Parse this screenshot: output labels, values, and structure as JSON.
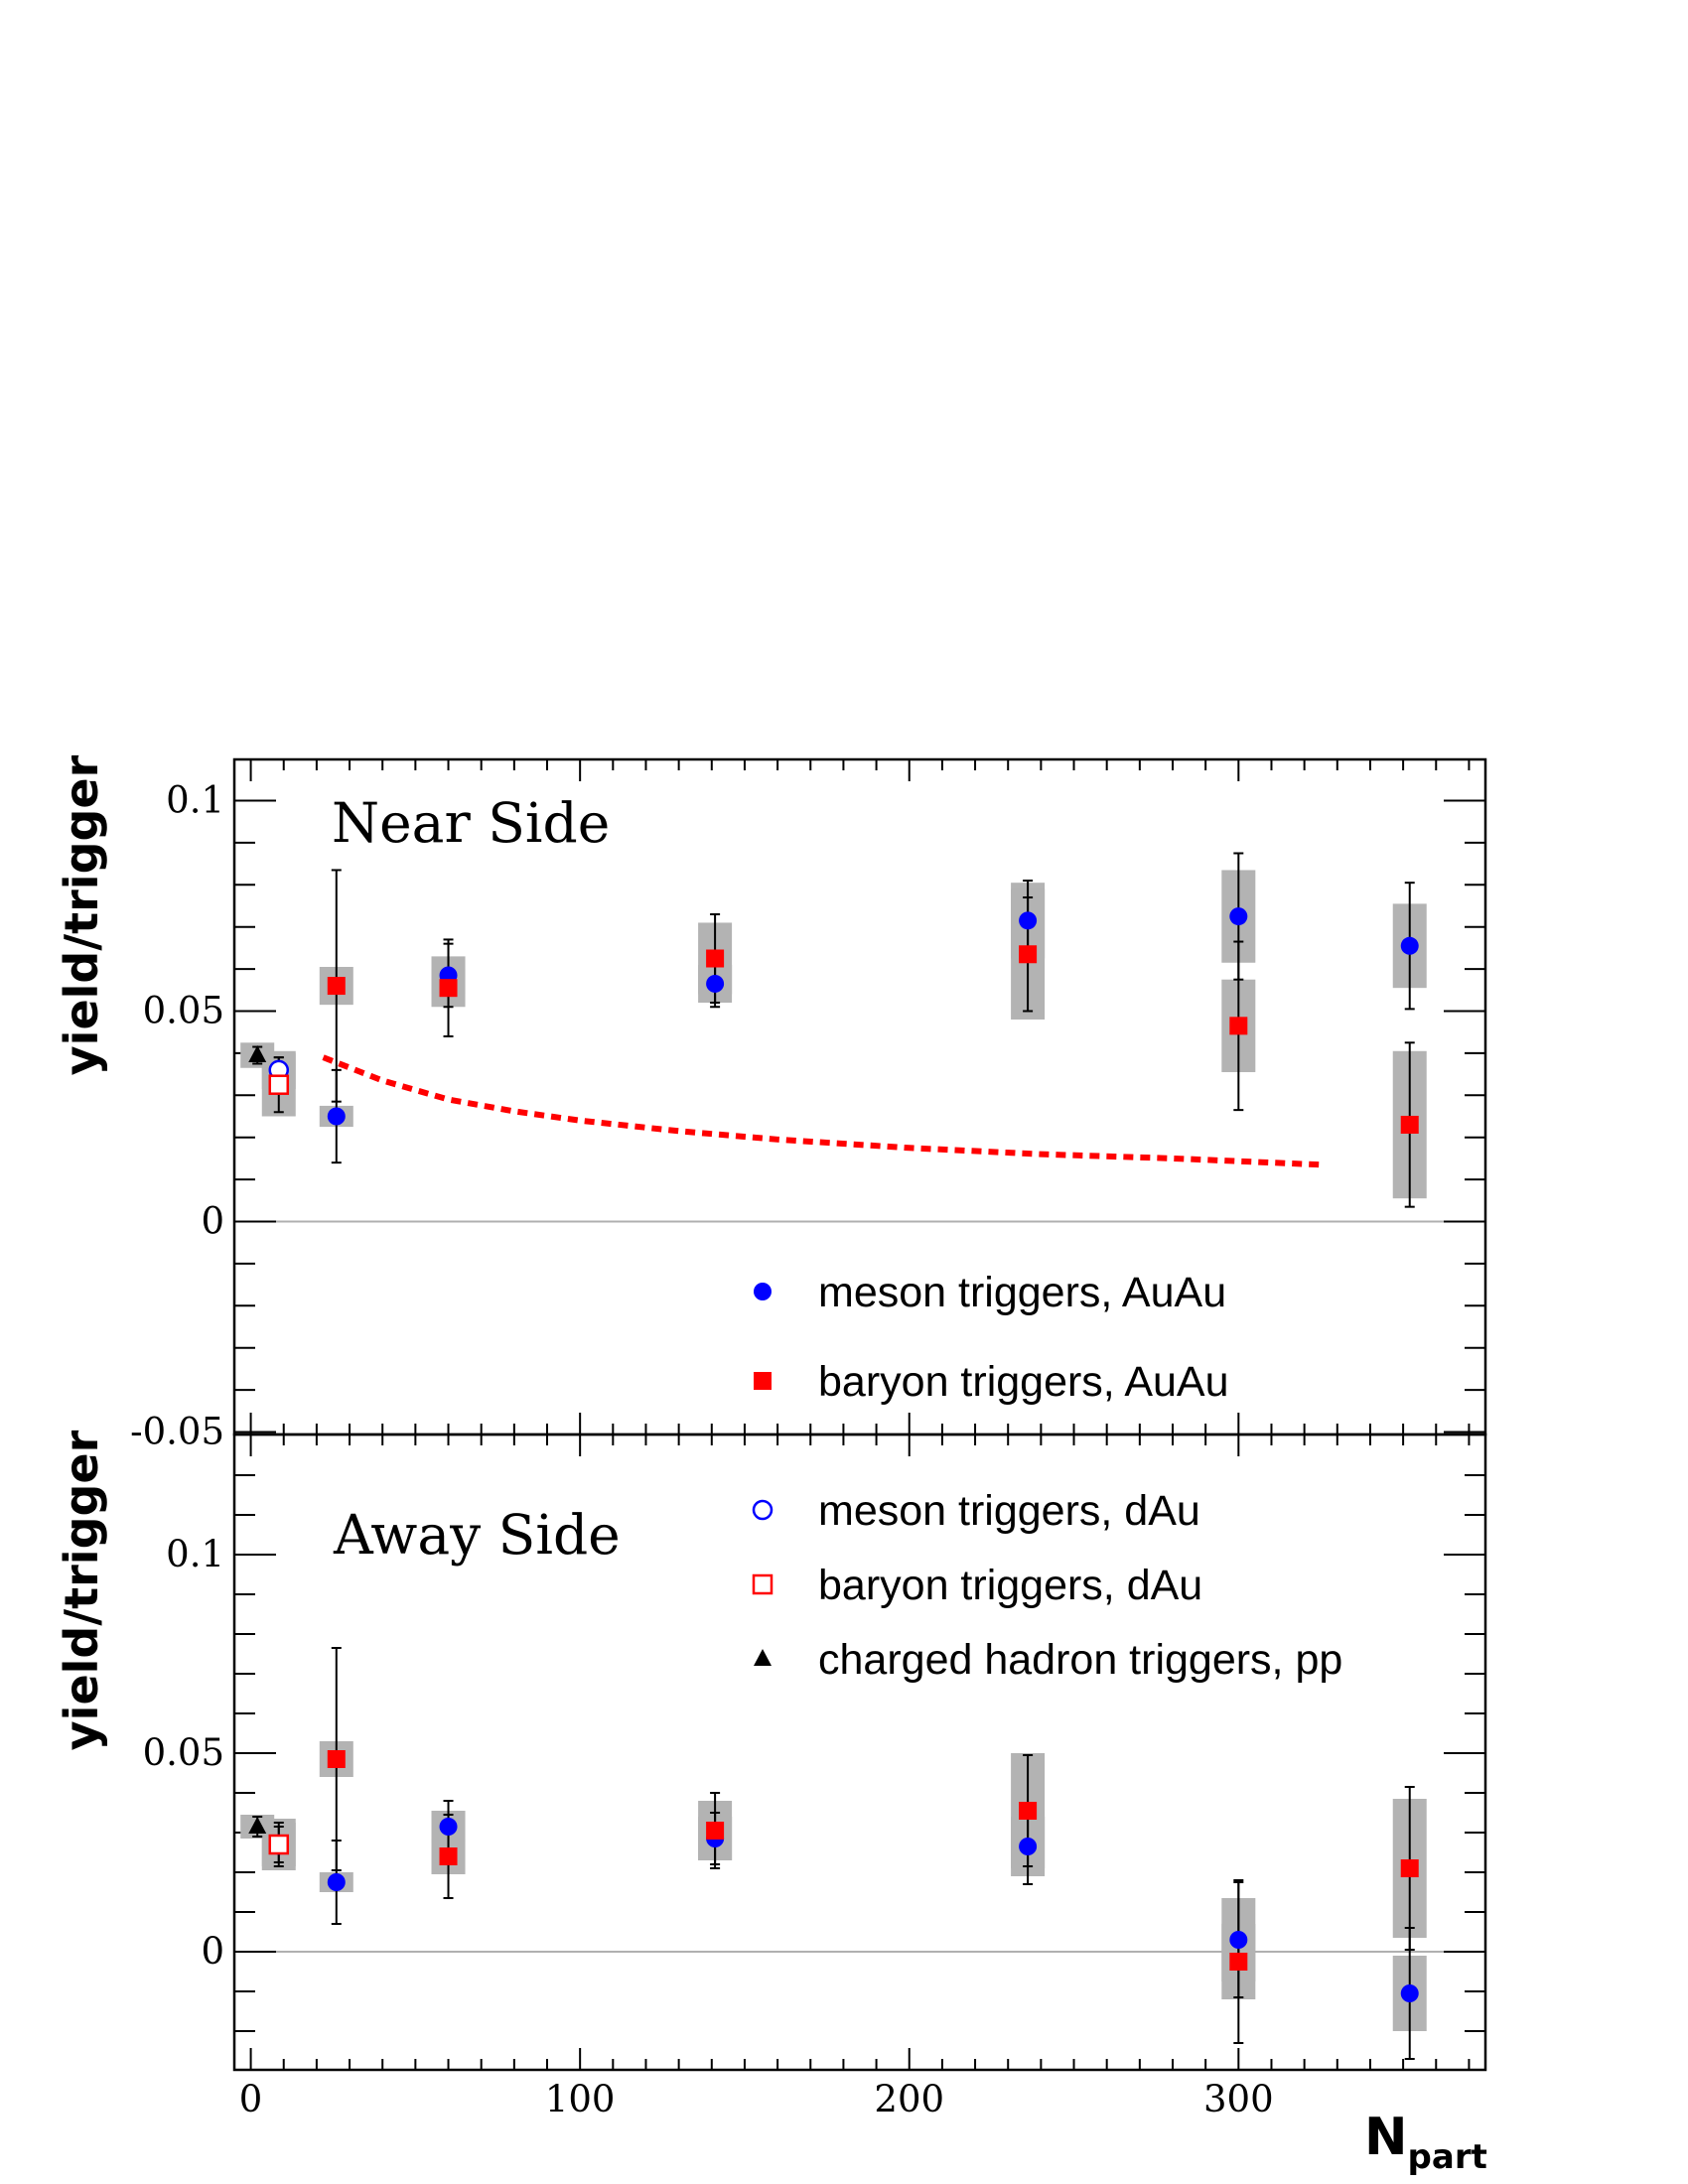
{
  "chart_data": [
    {
      "type": "scatter",
      "title": "Near Side",
      "ylabel": "yield/trigger",
      "ylim": [
        -0.05,
        0.1
      ],
      "yticks": [
        -0.05,
        0,
        0.05,
        0.1
      ],
      "ytick_labels": [
        "-0.05",
        "0",
        "0.05",
        "0.1"
      ],
      "series": [
        {
          "name": "meson triggers, AuAu",
          "marker": "circle",
          "color": "#0000ff",
          "filled": true,
          "points": [
            {
              "x": 26,
              "y": 0.025,
              "err": 0.011,
              "sys": 0.0025
            },
            {
              "x": 60,
              "y": 0.0585,
              "err": 0.0075,
              "sys": 0.0045
            },
            {
              "x": 141,
              "y": 0.0565,
              "err": 0.0055,
              "sys": 0.0045
            },
            {
              "x": 236,
              "y": 0.0715,
              "err": 0.0095,
              "sys": 0.009
            },
            {
              "x": 300,
              "y": 0.0725,
              "err": 0.015,
              "sys": 0.011
            },
            {
              "x": 352,
              "y": 0.0655,
              "err": 0.015,
              "sys": 0.01
            }
          ]
        },
        {
          "name": "baryon triggers, AuAu",
          "marker": "square",
          "color": "#ff0000",
          "filled": true,
          "points": [
            {
              "x": 26,
              "y": 0.056,
              "err": 0.0275,
              "sys": 0.0045
            },
            {
              "x": 60,
              "y": 0.0555,
              "err": 0.0115,
              "sys": 0.0045
            },
            {
              "x": 141,
              "y": 0.0625,
              "err": 0.0105,
              "sys": 0.0085
            },
            {
              "x": 236,
              "y": 0.0635,
              "err": 0.0135,
              "sys": 0.0155
            },
            {
              "x": 300,
              "y": 0.0465,
              "err": 0.02,
              "sys": 0.011
            },
            {
              "x": 352,
              "y": 0.023,
              "err": 0.0195,
              "sys": 0.0175
            }
          ]
        },
        {
          "name": "meson triggers, dAu",
          "marker": "circle",
          "color": "#0000ff",
          "filled": false,
          "points": [
            {
              "x": 8.5,
              "y": 0.036,
              "err": 0.003,
              "sys": 0.0045
            }
          ]
        },
        {
          "name": "baryon triggers, dAu",
          "marker": "square",
          "color": "#ff0000",
          "filled": false,
          "points": [
            {
              "x": 8.5,
              "y": 0.0325,
              "err": 0.0065,
              "sys": 0.0075
            }
          ]
        },
        {
          "name": "charged hadron triggers, pp",
          "marker": "triangle",
          "color": "#000000",
          "filled": true,
          "points": [
            {
              "x": 2,
              "y": 0.0395,
              "err": 0.002,
              "sys": 0.003
            }
          ]
        }
      ],
      "curve": {
        "style": "dashed",
        "color": "#ff0000",
        "x": [
          22,
          40,
          60,
          80,
          100,
          130,
          160,
          200,
          240,
          280,
          325
        ],
        "y": [
          0.039,
          0.0335,
          0.029,
          0.0262,
          0.024,
          0.0215,
          0.0195,
          0.0175,
          0.016,
          0.015,
          0.0135
        ]
      }
    },
    {
      "type": "scatter",
      "title": "Away Side",
      "xlabel": "N",
      "xlabel_sub": "part",
      "ylabel": "yield/trigger",
      "xlim": [
        -5,
        375
      ],
      "ylim": [
        -0.028,
        0.128
      ],
      "xticks": [
        0,
        100,
        200,
        300
      ],
      "xtick_labels": [
        "0",
        "100",
        "200",
        "300"
      ],
      "yticks": [
        0,
        0.05,
        0.1
      ],
      "ytick_labels": [
        "0",
        "0.05",
        "0.1"
      ],
      "series": [
        {
          "name": "meson triggers, AuAu",
          "marker": "circle",
          "color": "#0000ff",
          "filled": true,
          "points": [
            {
              "x": 26,
              "y": 0.0175,
              "err": 0.0105,
              "sys": 0.0025
            },
            {
              "x": 60,
              "y": 0.0315,
              "err": 0.0065,
              "sys": 0.004
            },
            {
              "x": 141,
              "y": 0.0285,
              "err": 0.0065,
              "sys": 0.0055
            },
            {
              "x": 236,
              "y": 0.0265,
              "err": 0.0095,
              "sys": 0.0075
            },
            {
              "x": 300,
              "y": 0.003,
              "err": 0.0145,
              "sys": 0.0105
            },
            {
              "x": 352,
              "y": -0.0105,
              "err": 0.0165,
              "sys": 0.0095
            }
          ]
        },
        {
          "name": "baryon triggers, AuAu",
          "marker": "square",
          "color": "#ff0000",
          "filled": true,
          "points": [
            {
              "x": 26,
              "y": 0.0485,
              "err": 0.028,
              "sys": 0.0045
            },
            {
              "x": 60,
              "y": 0.024,
              "err": 0.0105,
              "sys": 0.0045
            },
            {
              "x": 141,
              "y": 0.0305,
              "err": 0.0095,
              "sys": 0.0075
            },
            {
              "x": 236,
              "y": 0.0355,
              "err": 0.014,
              "sys": 0.0145
            },
            {
              "x": 300,
              "y": -0.0025,
              "err": 0.0205,
              "sys": 0.0095
            },
            {
              "x": 352,
              "y": 0.021,
              "err": 0.0205,
              "sys": 0.0175
            }
          ]
        },
        {
          "name": "meson triggers, dAu",
          "marker": "circle",
          "color": "#0000ff",
          "filled": false,
          "points": [
            {
              "x": 8.5,
              "y": 0.027,
              "err": 0.0045,
              "sys": 0.0055
            }
          ]
        },
        {
          "name": "baryon triggers, dAu",
          "marker": "square",
          "color": "#ff0000",
          "filled": false,
          "points": [
            {
              "x": 8.5,
              "y": 0.027,
              "err": 0.0055,
              "sys": 0.0065
            }
          ]
        },
        {
          "name": "charged hadron triggers, pp",
          "marker": "triangle",
          "color": "#000000",
          "filled": true,
          "points": [
            {
              "x": 2,
              "y": 0.0315,
              "err": 0.0025,
              "sys": 0.003
            }
          ]
        }
      ]
    }
  ],
  "legend_top": [
    {
      "label": "meson triggers, AuAu",
      "marker": "circle",
      "color": "#0000ff",
      "filled": true
    },
    {
      "label": "baryon triggers, AuAu",
      "marker": "square",
      "color": "#ff0000",
      "filled": true
    }
  ],
  "legend_bottom": [
    {
      "label": "meson triggers, dAu",
      "marker": "circle",
      "color": "#0000ff",
      "filled": false
    },
    {
      "label": "baryon triggers, dAu",
      "marker": "square",
      "color": "#ff0000",
      "filled": false
    },
    {
      "label": "charged hadron triggers, pp",
      "marker": "triangle",
      "color": "#000000",
      "filled": true
    }
  ],
  "colors": {
    "systematic_band": "#b3b3b3",
    "zero_line": "#b0b0b0",
    "frame": "#000000"
  }
}
